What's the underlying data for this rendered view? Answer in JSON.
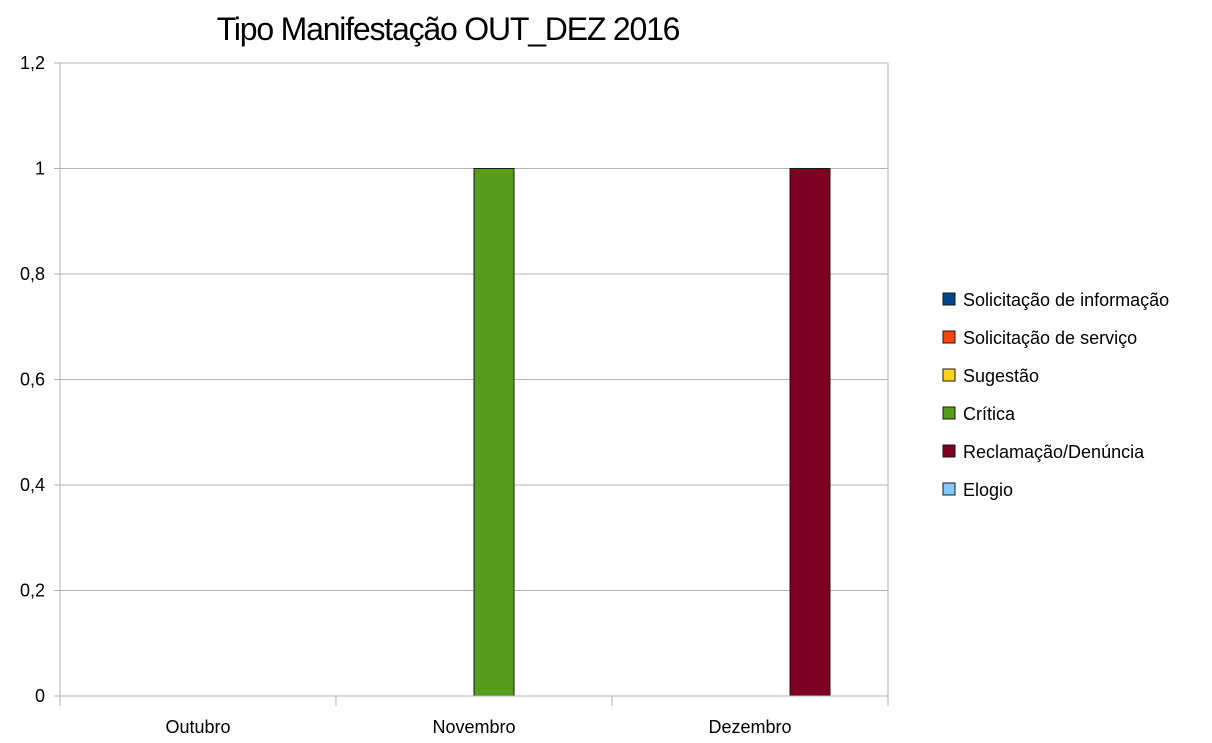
{
  "chart_data": {
    "type": "bar",
    "title": "Tipo Manifestação OUT_DEZ 2016",
    "xlabel": "",
    "ylabel": "",
    "categories": [
      "Outubro",
      "Novembro",
      "Dezembro"
    ],
    "series": [
      {
        "name": "Solicitação de informação",
        "color": "#004586",
        "values": [
          0,
          0,
          0
        ]
      },
      {
        "name": "Solicitação de serviço",
        "color": "#ff420e",
        "values": [
          0,
          0,
          0
        ]
      },
      {
        "name": "Sugestão",
        "color": "#ffd320",
        "values": [
          0,
          0,
          0
        ]
      },
      {
        "name": "Crítica",
        "color": "#579d1c",
        "values": [
          0,
          1,
          0
        ]
      },
      {
        "name": "Reclamação/Denúncia",
        "color": "#7e0021",
        "values": [
          0,
          0,
          1
        ]
      },
      {
        "name": "Elogio",
        "color": "#83caff",
        "values": [
          0,
          0,
          0
        ]
      }
    ],
    "ylim": [
      0,
      1.2
    ],
    "yticks": [
      0,
      0.2,
      0.4,
      0.6,
      0.8,
      1,
      1.2
    ],
    "ytick_labels": [
      "0",
      "0,2",
      "0,4",
      "0,6",
      "0,8",
      "1",
      "1,2"
    ],
    "grid": true,
    "legend": "right"
  }
}
